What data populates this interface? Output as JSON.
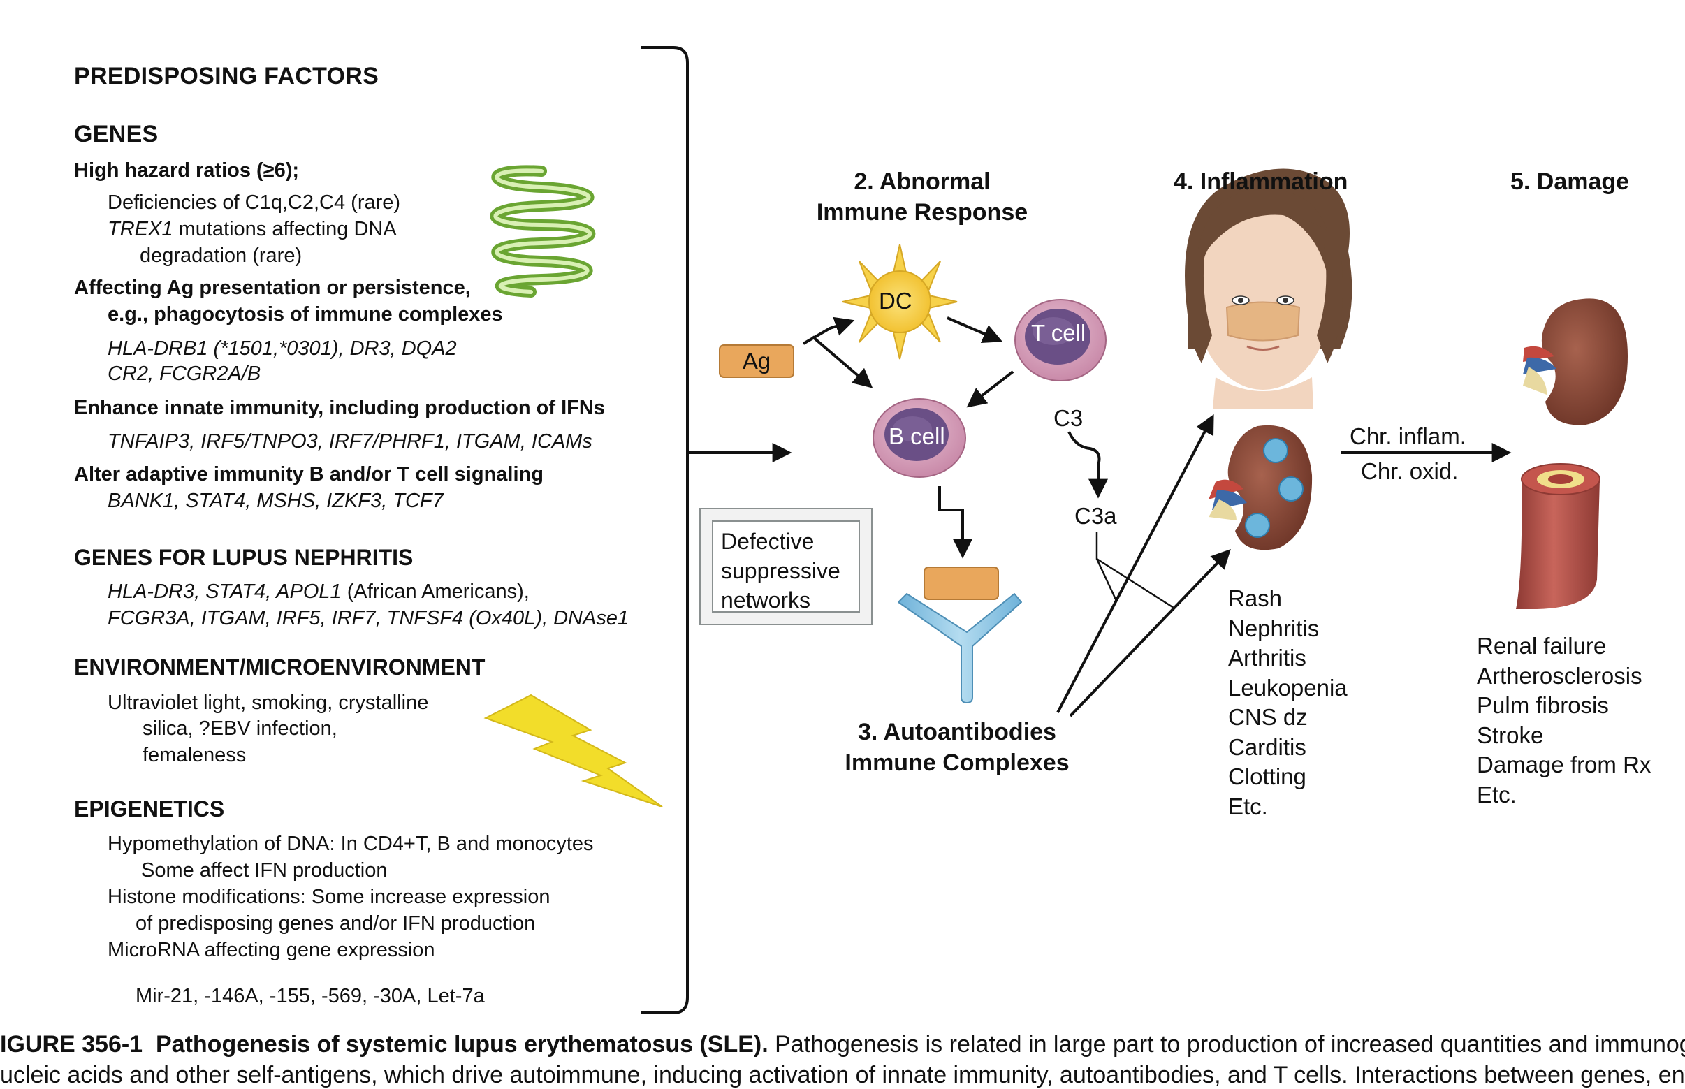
{
  "left": {
    "title": "PREDISPOSING FACTORS",
    "genes": {
      "heading": "GENES",
      "high_hazard": {
        "label": "High hazard ratios (≥6);",
        "lines": [
          "Deficiencies of C1q,C2,C4 (rare)",
          "mutations affecting DNA",
          "degradation (rare)"
        ],
        "trex1": "TREX1"
      },
      "ag_presentation": {
        "label_1": "Affecting Ag presentation or persistence,",
        "label_2": "e.g., phagocytosis of immune complexes",
        "genes_1": "HLA-DRB1 (*1501,*0301), DR3, DQA2",
        "genes_2": "CR2, FCGR2A/B"
      },
      "innate": {
        "label": "Enhance innate immunity, including production of IFNs",
        "genes": "TNFAIP3, IRF5/TNPO3, IRF7/PHRF1, ITGAM, ICAMs"
      },
      "adaptive": {
        "label": "Alter adaptive immunity B and/or T cell signaling",
        "genes": "BANK1, STAT4, MSHS, IZKF3, TCF7"
      }
    },
    "nephritis": {
      "heading": "GENES FOR LUPUS NEPHRITIS",
      "line_1_genes": "HLA-DR3, STAT4, APOL1",
      "line_1_note": " (African Americans),",
      "line_2": "FCGR3A, ITGAM, IRF5, IRF7, TNFSF4 (Ox40L), DNAse1"
    },
    "environment": {
      "heading": "ENVIRONMENT/MICROENVIRONMENT",
      "lines": [
        "Ultraviolet light, smoking, crystalline",
        "silica, ?EBV infection,",
        "femaleness"
      ]
    },
    "epigenetics": {
      "heading": "EPIGENETICS",
      "lines": [
        "Hypomethylation of DNA: In CD4+T, B and monocytes",
        "Some affect IFN production",
        "Histone modifications: Some increase expression",
        "of predisposing genes and/or IFN production",
        "MicroRNA affecting gene expression",
        "Mir-21, -146A, -155, -569, -30A, Let-7a"
      ]
    }
  },
  "center": {
    "stage_2": [
      "2. Abnormal",
      "Immune Response"
    ],
    "stage_3": [
      "3. Autoantibodies",
      "Immune Complexes"
    ],
    "ag": "Ag",
    "dc": "DC",
    "t_cell": "T cell",
    "b_cell": "B cell",
    "c3": "C3",
    "c3a": "C3a",
    "defective": [
      "Defective",
      "suppressive",
      "networks"
    ]
  },
  "inflammation": {
    "title": "4. Inflammation",
    "items": [
      "Rash",
      "Nephritis",
      "Arthritis",
      "Leukopenia",
      "CNS dz",
      "Carditis",
      "Clotting",
      "Etc."
    ]
  },
  "transition": {
    "top": "Chr. inflam.",
    "bottom": "Chr. oxid."
  },
  "damage": {
    "title": "5. Damage",
    "items": [
      "Renal failure",
      "Artherosclerosis",
      "Pulm fibrosis",
      "Stroke",
      "Damage from Rx",
      "Etc."
    ]
  },
  "caption": {
    "label": "IGURE 356-1",
    "title": "Pathogenesis of systemic lupus erythematosus (SLE).",
    "text_1": " Pathogenesis is related in large part to production of increased quantities and immunogenic fo",
    "text_2": "ucleic acids and other self-antigens, which drive autoimmune, inducing activation of innate immunity, autoantibodies, and T cells. Interactions between genes, environ"
  },
  "colors": {
    "dc_fill": "#f7d24a",
    "cell_fill": "#d9a6bf",
    "nucleus_fill": "#6a4f86",
    "ag_fill": "#e9a75c",
    "antibody_fill": "#8fc3e0",
    "kidney_fill": "#8a4b3a",
    "artery_fill": "#b5524a",
    "lightning": "#f2dd2a",
    "dna": "#8fc74a"
  }
}
